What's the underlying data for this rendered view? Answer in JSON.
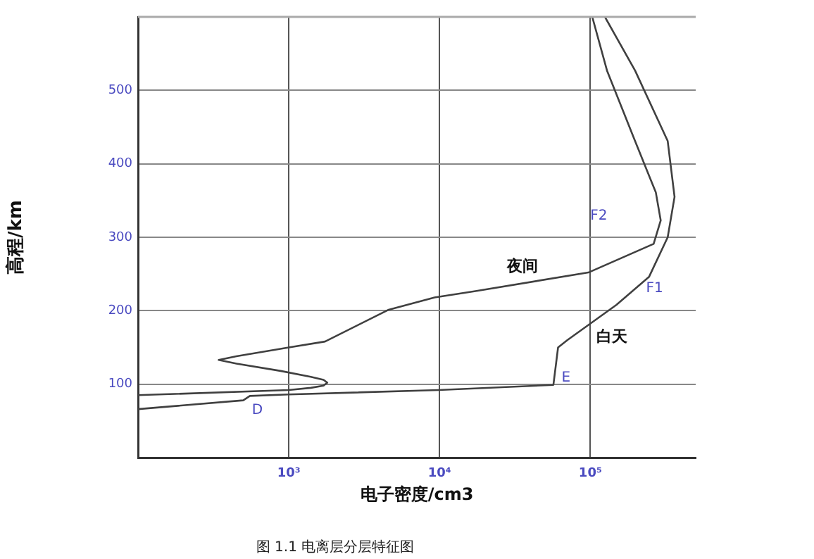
{
  "chart_data": {
    "type": "line",
    "xlabel": "电子密度/cm3",
    "ylabel": "高程/km",
    "log": "x",
    "grid": true,
    "legend": false,
    "marker": "none",
    "line_style": "solid",
    "xlim": [
      100,
      500000
    ],
    "xticks": [
      {
        "value": 1000,
        "label": "10³"
      },
      {
        "value": 10000,
        "label": "10⁴"
      },
      {
        "value": 100000,
        "label": "10⁵"
      }
    ],
    "ylim": [
      0,
      600
    ],
    "yticks": [
      100,
      200,
      300,
      400,
      500
    ],
    "series": [
      {
        "name": "夜间",
        "color": "#404040",
        "x": [
          100,
          1000,
          1400,
          1700,
          1800,
          1700,
          1400,
          883,
          450,
          343,
          450,
          1000,
          1740,
          4550,
          9270,
          17600,
          97000,
          263000,
          293000,
          272000,
          198000,
          129000,
          103000
        ],
        "values": [
          85,
          92,
          95,
          98,
          102,
          106,
          110,
          118,
          128,
          133,
          138,
          150,
          158,
          201,
          218,
          227,
          252,
          291,
          323,
          361,
          431,
          527,
          600
        ]
      },
      {
        "name": "白天",
        "color": "#404040",
        "x": [
          100,
          499,
          552,
          1000,
          9860,
          56900,
          61100,
          70500,
          149000,
          245000,
          326000,
          362000,
          326000,
          198000,
          125000
        ],
        "values": [
          66,
          78,
          84,
          86,
          92,
          99,
          150,
          160,
          208,
          246,
          300,
          355,
          431,
          527,
          600
        ]
      }
    ],
    "annotations": [
      "D",
      "E",
      "F1",
      "F2",
      "图 1.1 电离层分层特征图"
    ]
  }
}
